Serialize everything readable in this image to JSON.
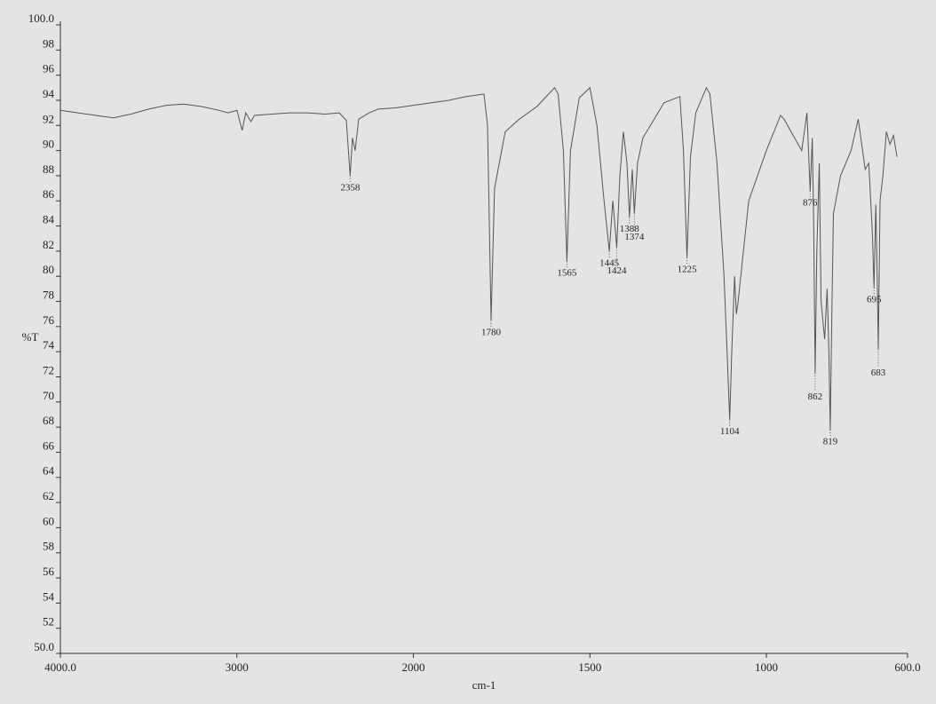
{
  "chart_data": {
    "type": "line",
    "ylabel": "%T",
    "xlabel": "cm-1",
    "color": "#555555",
    "xlim": [
      4000,
      600
    ],
    "x_scale_break": 2000,
    "x_scale_factor": 2,
    "ylim": [
      50,
      100
    ],
    "xticks": [
      {
        "value": 4000,
        "label": "4000.0"
      },
      3000,
      2000,
      1500,
      1000,
      {
        "value": 600,
        "label": "600.0"
      }
    ],
    "yticks": [
      {
        "value": 50,
        "label": "50.0"
      },
      52,
      54,
      56,
      58,
      60,
      62,
      64,
      66,
      68,
      70,
      72,
      74,
      76,
      78,
      80,
      82,
      84,
      86,
      88,
      90,
      92,
      94,
      96,
      98,
      {
        "value": 100,
        "label": "100.0"
      }
    ],
    "x": [
      4000,
      3900,
      3800,
      3700,
      3600,
      3500,
      3400,
      3300,
      3200,
      3100,
      3050,
      3000,
      2970,
      2950,
      2920,
      2900,
      2800,
      2700,
      2600,
      2500,
      2420,
      2380,
      2358,
      2345,
      2330,
      2310,
      2250,
      2200,
      2100,
      2000,
      1900,
      1850,
      1800,
      1790,
      1780,
      1770,
      1740,
      1700,
      1650,
      1600,
      1590,
      1575,
      1565,
      1555,
      1530,
      1500,
      1480,
      1460,
      1445,
      1435,
      1424,
      1415,
      1405,
      1395,
      1388,
      1380,
      1374,
      1365,
      1350,
      1290,
      1245,
      1235,
      1225,
      1215,
      1200,
      1170,
      1160,
      1140,
      1120,
      1110,
      1104,
      1098,
      1090,
      1085,
      1080,
      1050,
      1000,
      960,
      950,
      930,
      900,
      885,
      876,
      870,
      866,
      862,
      857,
      850,
      845,
      835,
      828,
      823,
      819,
      815,
      810,
      790,
      760,
      740,
      720,
      710,
      700,
      695,
      690,
      686,
      683,
      678,
      670,
      660,
      650,
      640,
      630
    ],
    "values": [
      93.2,
      93.0,
      92.8,
      92.6,
      92.9,
      93.3,
      93.6,
      93.7,
      93.5,
      93.2,
      93.0,
      93.2,
      91.6,
      93.0,
      92.3,
      92.8,
      92.9,
      93.0,
      93.0,
      92.9,
      93.0,
      92.4,
      88.0,
      91.0,
      90.0,
      92.5,
      93.0,
      93.3,
      93.4,
      93.6,
      94.0,
      94.3,
      94.5,
      92.0,
      76.5,
      87.0,
      91.5,
      92.5,
      93.5,
      95.0,
      94.5,
      90.0,
      81.2,
      90.0,
      94.2,
      95.0,
      92.0,
      86.0,
      82.0,
      86.0,
      82.3,
      88.0,
      91.5,
      89.0,
      84.7,
      88.5,
      85.0,
      89.0,
      91.0,
      93.8,
      94.3,
      90.0,
      81.5,
      89.5,
      93.0,
      95.0,
      94.5,
      89.0,
      80.0,
      73.0,
      68.6,
      74.0,
      80.0,
      77.0,
      78.0,
      86.0,
      90.0,
      92.8,
      92.5,
      91.5,
      90.0,
      93.0,
      86.8,
      91.0,
      84.0,
      72.3,
      82.0,
      89.0,
      78.0,
      75.0,
      79.0,
      74.0,
      67.8,
      76.0,
      85.0,
      88.0,
      90.0,
      92.5,
      88.5,
      89.0,
      83.5,
      79.1,
      85.7,
      80.0,
      74.2,
      86.0,
      88.0,
      91.5,
      90.5,
      91.2,
      89.5
    ],
    "peaks": {
      "x": [
        2358,
        1780,
        1565,
        1445,
        1424,
        1388,
        1374,
        1225,
        1104,
        876,
        862,
        819,
        695,
        683
      ],
      "y": [
        88.0,
        76.5,
        81.2,
        82.0,
        82.3,
        84.7,
        85.0,
        81.5,
        68.6,
        86.8,
        72.3,
        67.8,
        79.1,
        74.2
      ]
    }
  }
}
